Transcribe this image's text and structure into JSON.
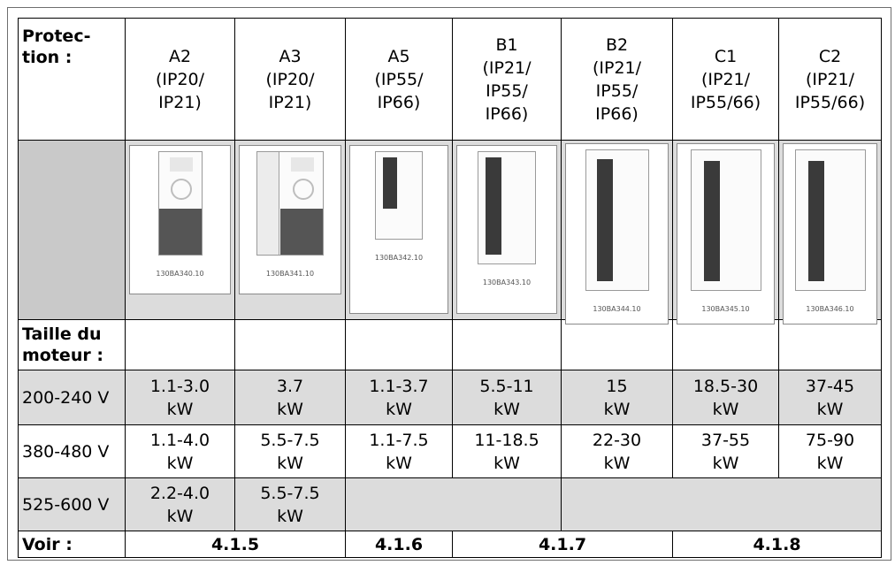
{
  "header": {
    "row_label": "Protec-\ntion :",
    "sizes": [
      {
        "code": "A2",
        "ip": "(IP20/\nIP21)"
      },
      {
        "code": "A3",
        "ip": "(IP20/\nIP21)"
      },
      {
        "code": "A5",
        "ip": "(IP55/\nIP66)"
      },
      {
        "code": "B1",
        "ip": "(IP21/\nIP55/\nIP66)"
      },
      {
        "code": "B2",
        "ip": "(IP21/\nIP55/\nIP66)"
      },
      {
        "code": "C1",
        "ip": "(IP21/\nIP55/66)"
      },
      {
        "code": "C2",
        "ip": "(IP21/\nIP55/66)"
      }
    ]
  },
  "images": [
    {
      "name": "a2-drive-image",
      "code": "130BA340.10"
    },
    {
      "name": "a3-drive-image",
      "code": "130BA341.10"
    },
    {
      "name": "a5-drive-image",
      "code": "130BA342.10"
    },
    {
      "name": "b1-drive-image",
      "code": "130BA343.10"
    },
    {
      "name": "b2-drive-image",
      "code": "130BA344.10"
    },
    {
      "name": "c1-drive-image",
      "code": "130BA345.10"
    },
    {
      "name": "c2-drive-image",
      "code": "130BA346.10"
    }
  ],
  "motor_label": "Taille du\nmoteur :",
  "rows": [
    {
      "voltage": "200-240 V",
      "values": [
        "1.1-3.0\nkW",
        "3.7\nkW",
        "1.1-3.7\nkW",
        "5.5-11\nkW",
        "15\nkW",
        "18.5-30\nkW",
        "37-45\nkW"
      ]
    },
    {
      "voltage": "380-480 V",
      "values": [
        "1.1-4.0\nkW",
        "5.5-7.5\nkW",
        "1.1-7.5\nkW",
        "11-18.5\nkW",
        "22-30\nkW",
        "37-55\nkW",
        "75-90\nkW"
      ]
    },
    {
      "voltage": "525-600 V",
      "values": [
        "2.2-4.0\nkW",
        "5.5-7.5\nkW",
        "",
        "",
        "",
        "",
        ""
      ]
    }
  ],
  "voir": {
    "label": "Voir :",
    "refs": [
      "4.1.5",
      "4.1.6",
      "4.1.7",
      "4.1.8"
    ]
  }
}
